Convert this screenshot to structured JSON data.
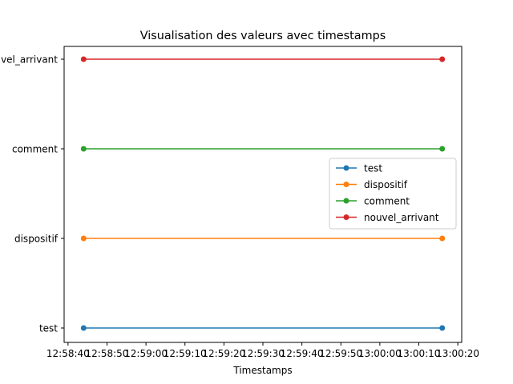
{
  "chart_data": {
    "type": "line",
    "title": "Visualisation des valeurs avec timestamps",
    "xlabel": "Timestamps",
    "ylabel": "",
    "x_ticks": [
      "12:58:40",
      "12:58:50",
      "12:59:00",
      "12:59:10",
      "12:59:20",
      "12:59:30",
      "12:59:40",
      "12:59:50",
      "13:00:00",
      "13:00:10",
      "13:00:20"
    ],
    "y_categories": [
      "test",
      "dispositif",
      "comment",
      "nouvel_arrivant"
    ],
    "y_tick_labels": [
      "test",
      "dispositif",
      "comment",
      "vel_arrivant"
    ],
    "xlim": [
      "12:58:39",
      "13:00:21"
    ],
    "grid": false,
    "legend_position": "center-right",
    "series": [
      {
        "name": "test",
        "color": "#1f77b4",
        "x": [
          "12:58:44",
          "13:00:16"
        ],
        "y": [
          "test",
          "test"
        ]
      },
      {
        "name": "dispositif",
        "color": "#ff7f0e",
        "x": [
          "12:58:44",
          "13:00:16"
        ],
        "y": [
          "dispositif",
          "dispositif"
        ]
      },
      {
        "name": "comment",
        "color": "#2ca02c",
        "x": [
          "12:58:44",
          "13:00:16"
        ],
        "y": [
          "comment",
          "comment"
        ]
      },
      {
        "name": "nouvel_arrivant",
        "color": "#d62728",
        "x": [
          "12:58:44",
          "13:00:16"
        ],
        "y": [
          "nouvel_arrivant",
          "nouvel_arrivant"
        ]
      }
    ]
  }
}
